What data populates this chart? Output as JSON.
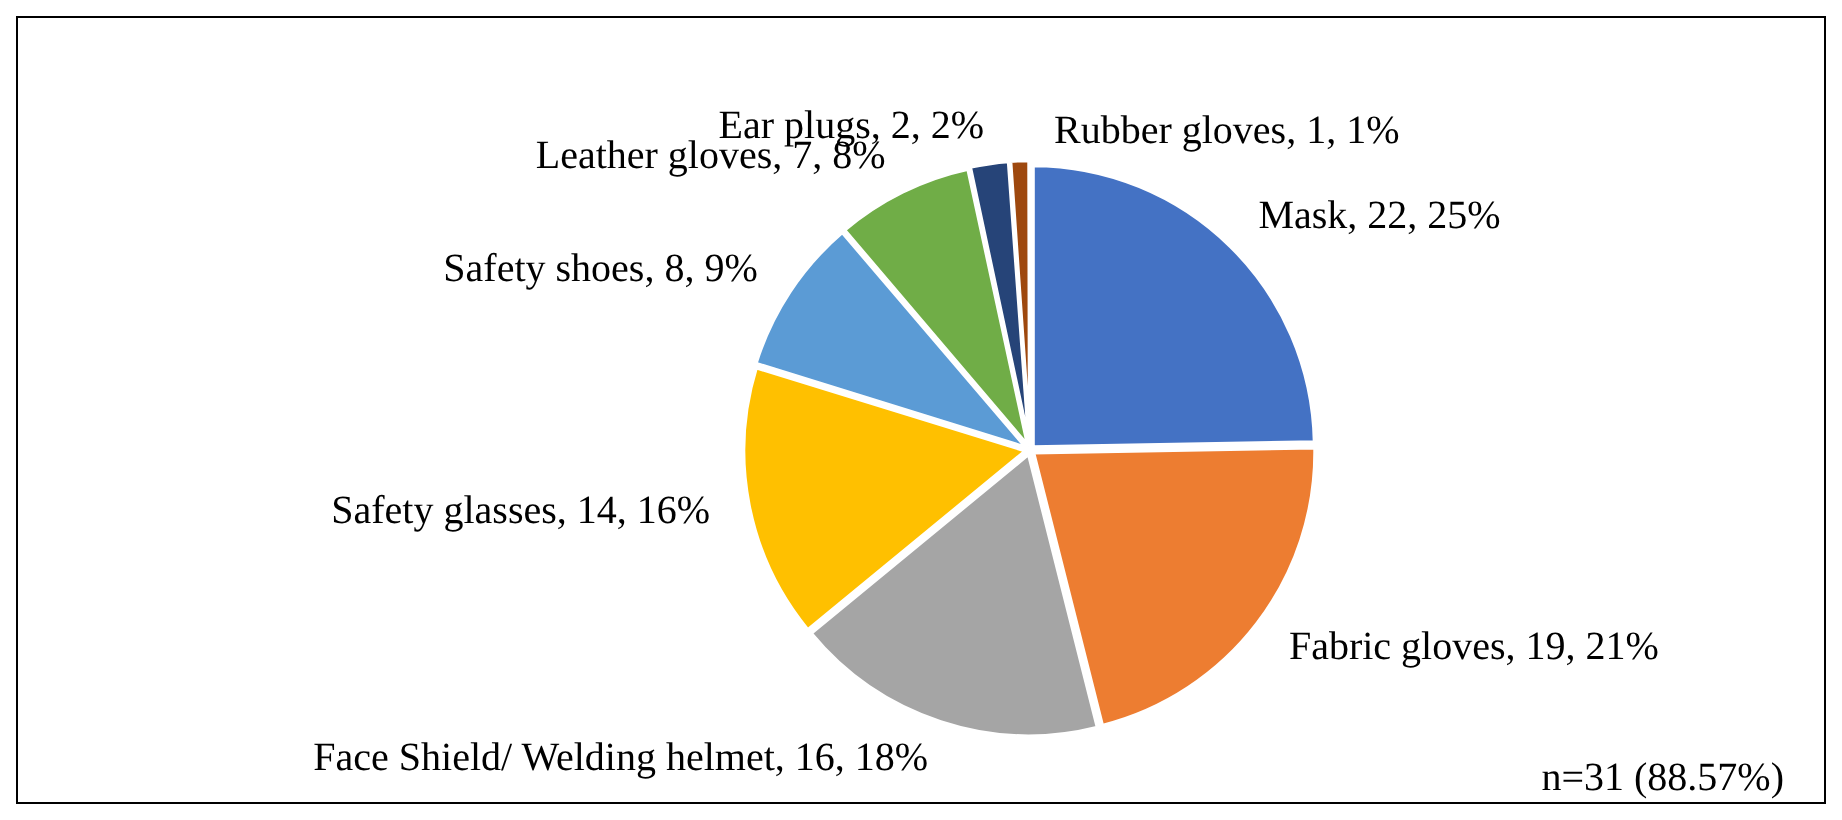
{
  "chart_data": {
    "type": "pie",
    "categories": [
      "Mask",
      "Fabric gloves",
      "Face Shield/ Welding helmet",
      "Safety glasses",
      "Safety shoes",
      "Leather gloves",
      "Ear plugs",
      "Rubber gloves"
    ],
    "values": [
      22,
      19,
      16,
      14,
      8,
      7,
      2,
      1
    ],
    "colors": [
      "#4472c4",
      "#ed7d31",
      "#a5a5a5",
      "#ffc000",
      "#5b9bd5",
      "#70ad47",
      "#264478",
      "#9e480e"
    ],
    "value_labels": [
      "22, 25%",
      "19, 21%",
      "16, 18%",
      "14, 16%",
      "8, 9%",
      "7, 8%",
      "2, 2%",
      "1, 1%"
    ],
    "annotations": [
      "n=31 (88.57%)"
    ],
    "legend": false
  }
}
